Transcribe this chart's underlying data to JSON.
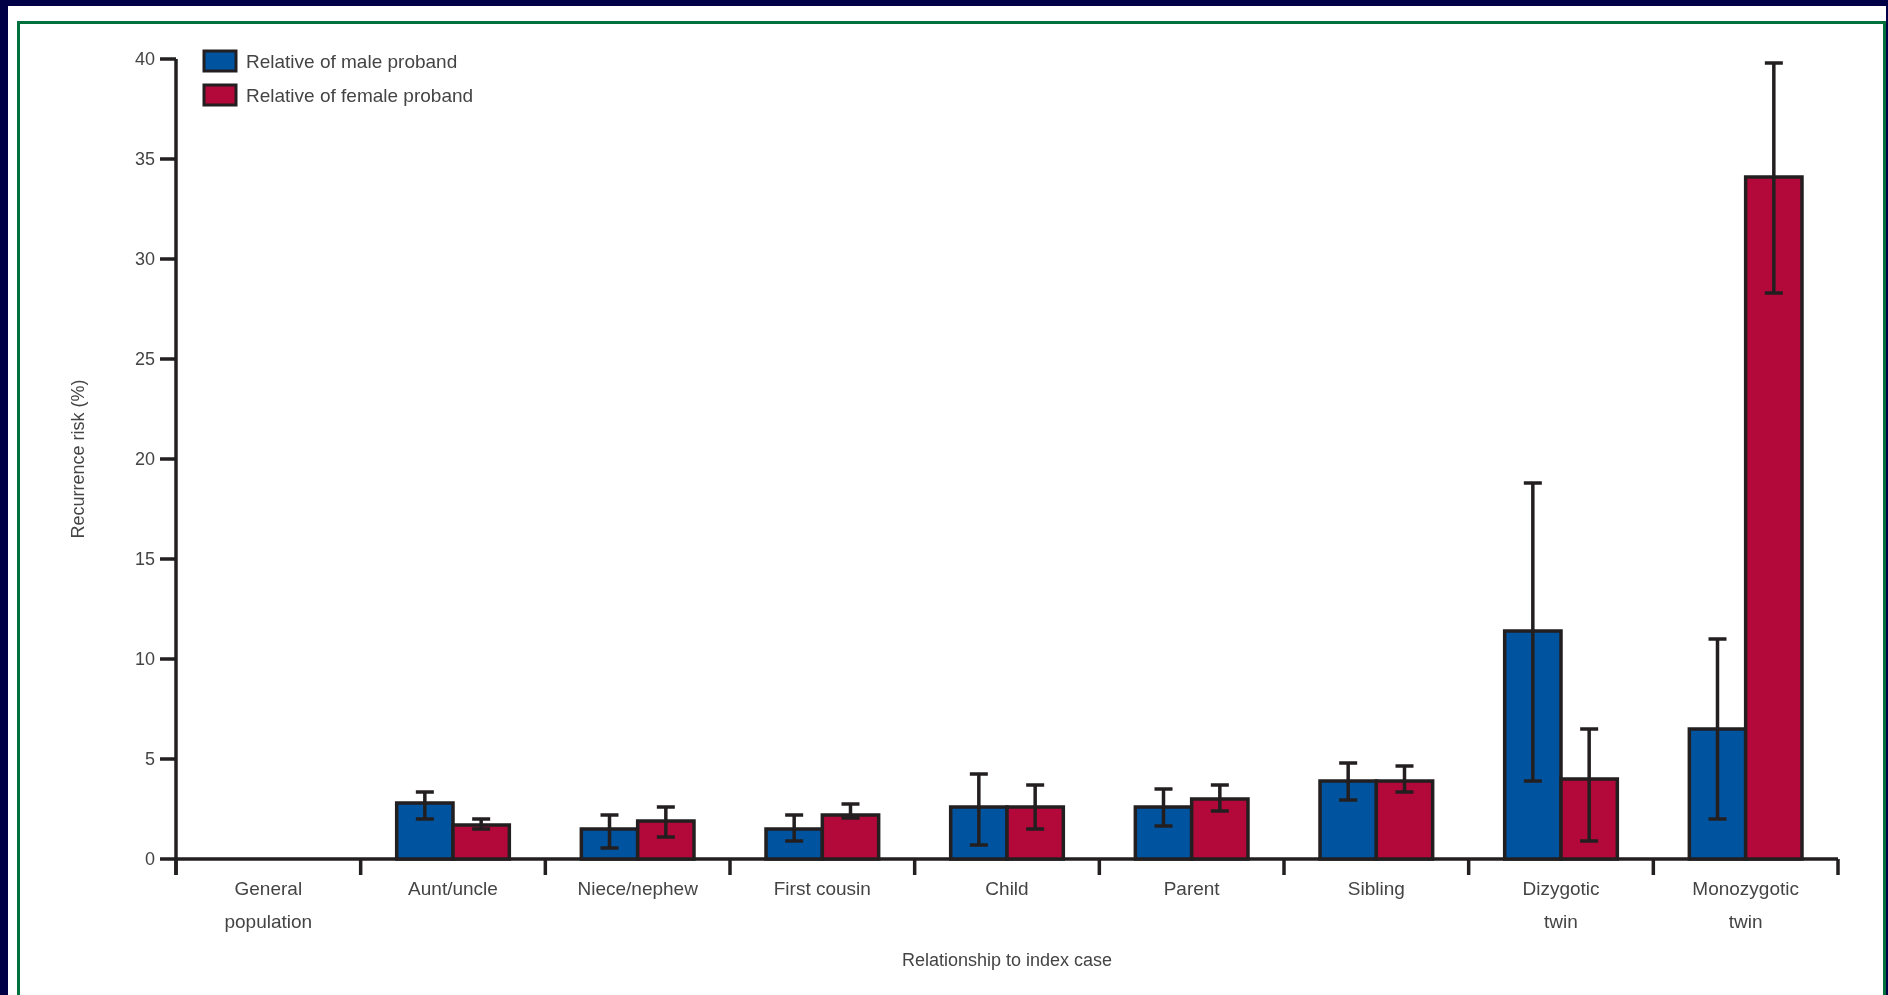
{
  "chart_data": {
    "type": "bar",
    "xlabel": "Relationship to index case",
    "ylabel": "Recurrence risk (%)",
    "categories": [
      "General\npopulation",
      "Aunt/uncle",
      "Niece/nephew",
      "First cousin",
      "Child",
      "Parent",
      "Sibling",
      "Dizygotic\ntwin",
      "Monozygotic\ntwin"
    ],
    "series": [
      {
        "name": "Relative of male proband",
        "color": "#00539f",
        "values": [
          null,
          2.8,
          1.5,
          1.5,
          2.6,
          2.6,
          3.9,
          11.4,
          6.5
        ],
        "errors": [
          null,
          [
            2.0,
            3.35
          ],
          [
            0.55,
            2.2
          ],
          [
            0.9,
            2.2
          ],
          [
            0.7,
            4.25
          ],
          [
            1.65,
            3.5
          ],
          [
            2.95,
            4.8
          ],
          [
            3.9,
            18.8
          ],
          [
            2.0,
            11.0
          ]
        ]
      },
      {
        "name": "Relative of female proband",
        "color": "#b3093a",
        "values": [
          null,
          1.7,
          1.9,
          2.2,
          2.6,
          3.0,
          3.9,
          4.0,
          34.1
        ],
        "errors": [
          null,
          [
            1.5,
            2.0
          ],
          [
            1.1,
            2.6
          ],
          [
            2.05,
            2.75
          ],
          [
            1.5,
            3.7
          ],
          [
            2.4,
            3.7
          ],
          [
            3.35,
            4.65
          ],
          [
            0.9,
            6.5
          ],
          [
            28.3,
            39.8
          ]
        ]
      }
    ],
    "ylim": [
      0,
      40
    ],
    "yticks": [
      0,
      5,
      10,
      15,
      20,
      25,
      30,
      35,
      40
    ],
    "legend": "top left"
  }
}
